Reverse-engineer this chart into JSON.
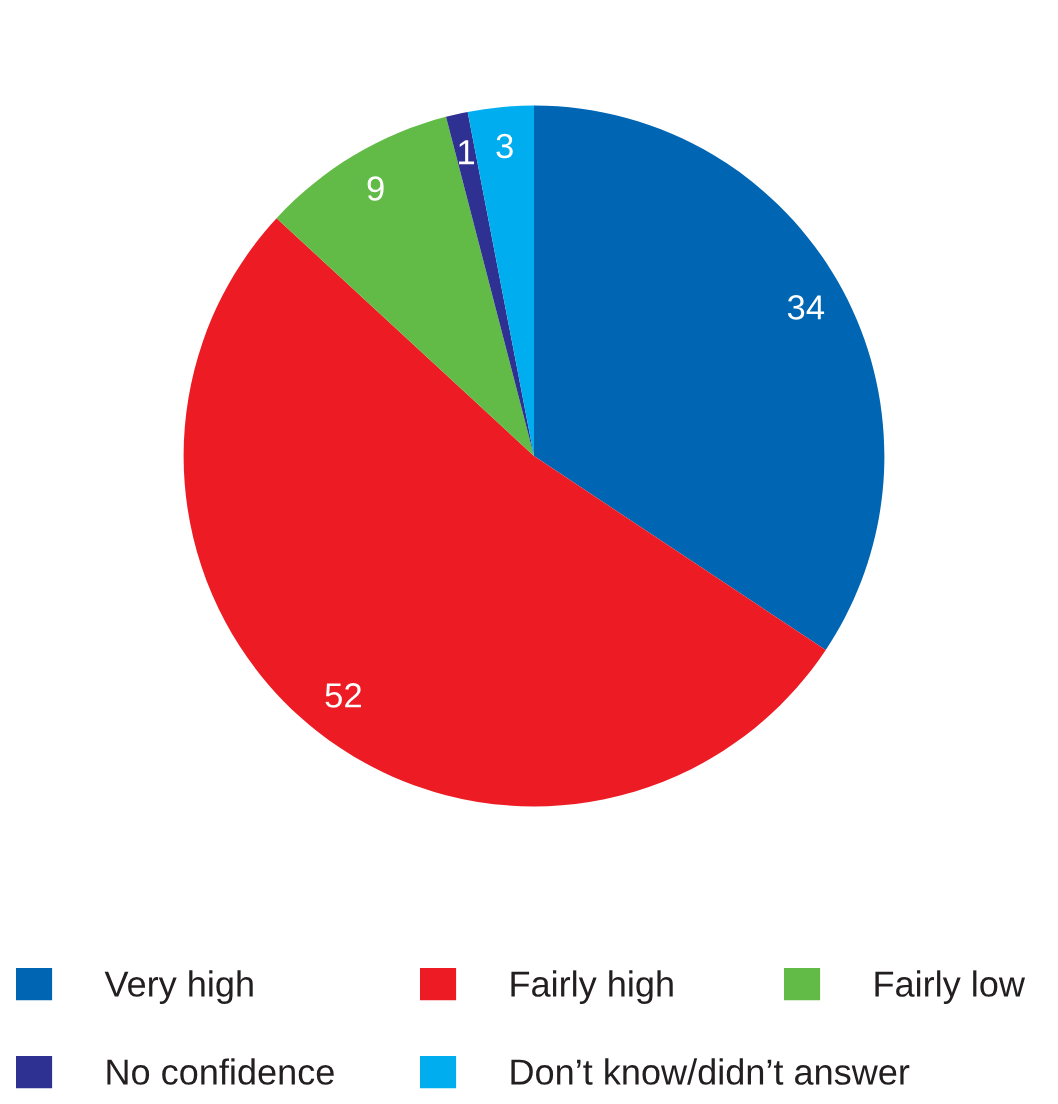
{
  "chart_data": {
    "type": "pie",
    "categories": [
      "Very high",
      "Fairly high",
      "Fairly low",
      "No confidence",
      "Don’t know/didn’t answer"
    ],
    "values": [
      34,
      52,
      9,
      1,
      3
    ],
    "colors": [
      "#0066b3",
      "#ed1c24",
      "#62bb46",
      "#2e3192",
      "#00aeef"
    ],
    "data_labels": true,
    "legend": "bottom"
  }
}
